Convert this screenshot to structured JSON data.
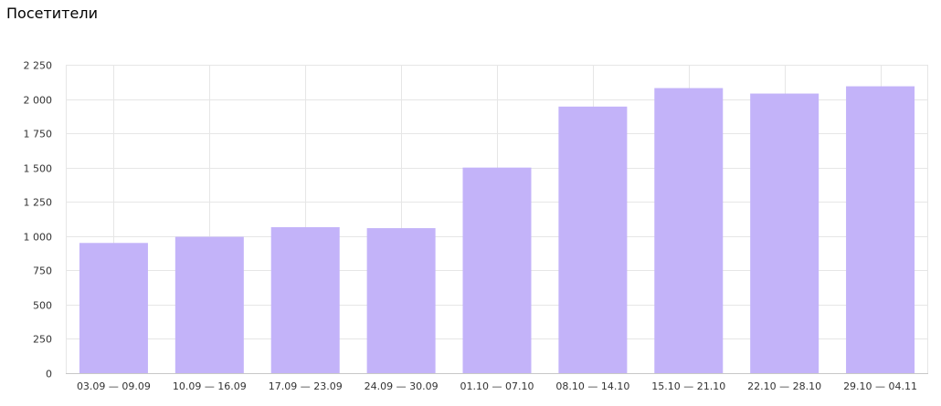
{
  "chart_data": {
    "type": "bar",
    "title": "Посетители",
    "categories": [
      "03.09 — 09.09",
      "10.09 — 16.09",
      "17.09 — 23.09",
      "24.09 — 30.09",
      "01.10 — 07.10",
      "08.10 — 14.10",
      "15.10 — 21.10",
      "22.10 — 28.10",
      "29.10 — 04.11"
    ],
    "values": [
      950,
      995,
      1065,
      1058,
      1500,
      1945,
      2080,
      2040,
      2093
    ],
    "y_ticks": [
      "0",
      "250",
      "500",
      "750",
      "1 000",
      "1 250",
      "1 500",
      "1 750",
      "2 000",
      "2 250"
    ],
    "ylim": [
      0,
      2250
    ],
    "grid": true,
    "bar_color": "#c3b3f9",
    "grid_color": "#e6e6e6",
    "axis_color": "#c8c8c8"
  }
}
